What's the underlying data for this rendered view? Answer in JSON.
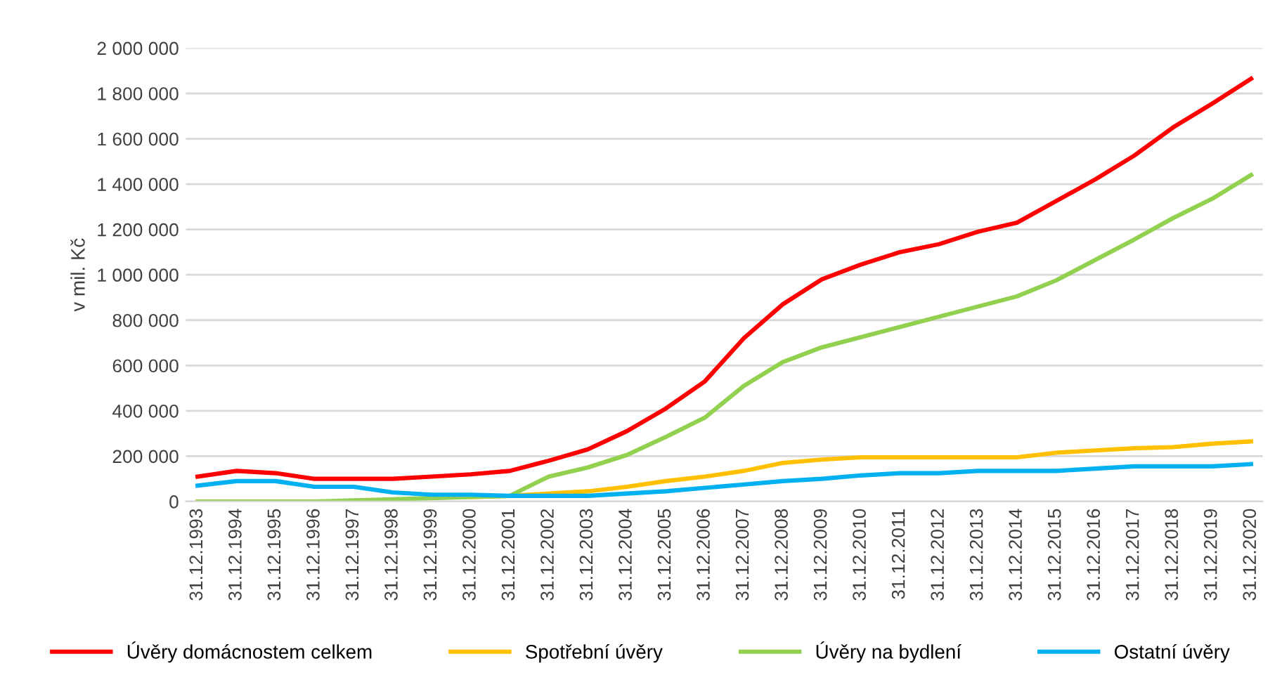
{
  "chart_data": {
    "type": "line",
    "ylabel": "v mil. Kč",
    "categories": [
      "31.12.1993",
      "31.12.1994",
      "31.12.1995",
      "31.12.1996",
      "31.12.1997",
      "31.12.1998",
      "31.12.1999",
      "31.12.2000",
      "31.12.2001",
      "31.12.2002",
      "31.12.2003",
      "31.12.2004",
      "31.12.2005",
      "31.12.2006",
      "31.12.2007",
      "31.12.2008",
      "31.12.2009",
      "31.12.2010",
      "31.12.2011",
      "31.12.2012",
      "31.12.2013",
      "31.12.2014",
      "31.12.2015",
      "31.12.2016",
      "31.12.2017",
      "31.12.2018",
      "31.12.2019",
      "31.12.2020"
    ],
    "series": [
      {
        "name": "Úvěry domácnostem celkem",
        "color": "#ff0000",
        "values": [
          110000,
          135000,
          125000,
          100000,
          100000,
          100000,
          110000,
          120000,
          135000,
          180000,
          230000,
          310000,
          410000,
          530000,
          720000,
          870000,
          980000,
          1045000,
          1100000,
          1135000,
          1190000,
          1230000,
          1325000,
          1420000,
          1525000,
          1650000,
          1755000,
          1865000
        ]
      },
      {
        "name": "Spotřební úvěry",
        "color": "#ffc000",
        "values": [
          null,
          null,
          null,
          null,
          null,
          null,
          null,
          20000,
          25000,
          35000,
          45000,
          65000,
          90000,
          110000,
          135000,
          170000,
          185000,
          195000,
          195000,
          195000,
          195000,
          195000,
          215000,
          225000,
          235000,
          240000,
          255000,
          265000
        ]
      },
      {
        "name": "Úvěry na bydlení",
        "color": "#92d050",
        "values": [
          0,
          0,
          0,
          0,
          5000,
          10000,
          15000,
          20000,
          25000,
          110000,
          150000,
          205000,
          285000,
          370000,
          510000,
          615000,
          680000,
          725000,
          770000,
          815000,
          860000,
          905000,
          975000,
          1065000,
          1155000,
          1250000,
          1335000,
          1440000
        ]
      },
      {
        "name": "Ostatní úvěry",
        "color": "#00b0f0",
        "values": [
          70000,
          90000,
          90000,
          65000,
          65000,
          40000,
          30000,
          30000,
          25000,
          25000,
          25000,
          35000,
          45000,
          60000,
          75000,
          90000,
          100000,
          115000,
          125000,
          125000,
          135000,
          135000,
          135000,
          145000,
          155000,
          155000,
          155000,
          165000
        ]
      }
    ],
    "ylim": [
      0,
      2000000
    ],
    "yticks": [
      {
        "value": 0,
        "label": "0"
      },
      {
        "value": 200000,
        "label": "200 000"
      },
      {
        "value": 400000,
        "label": "400 000"
      },
      {
        "value": 600000,
        "label": "600 000"
      },
      {
        "value": 800000,
        "label": "800 000"
      },
      {
        "value": 1000000,
        "label": "1 000 000"
      },
      {
        "value": 1200000,
        "label": "1 200 000"
      },
      {
        "value": 1400000,
        "label": "1 400 000"
      },
      {
        "value": 1600000,
        "label": "1 600 000"
      },
      {
        "value": 1800000,
        "label": "1 800 000"
      },
      {
        "value": 2000000,
        "label": "2 000 000"
      }
    ],
    "grid": "y",
    "legend": "bottom",
    "marker": "none",
    "line_style": "solid"
  }
}
